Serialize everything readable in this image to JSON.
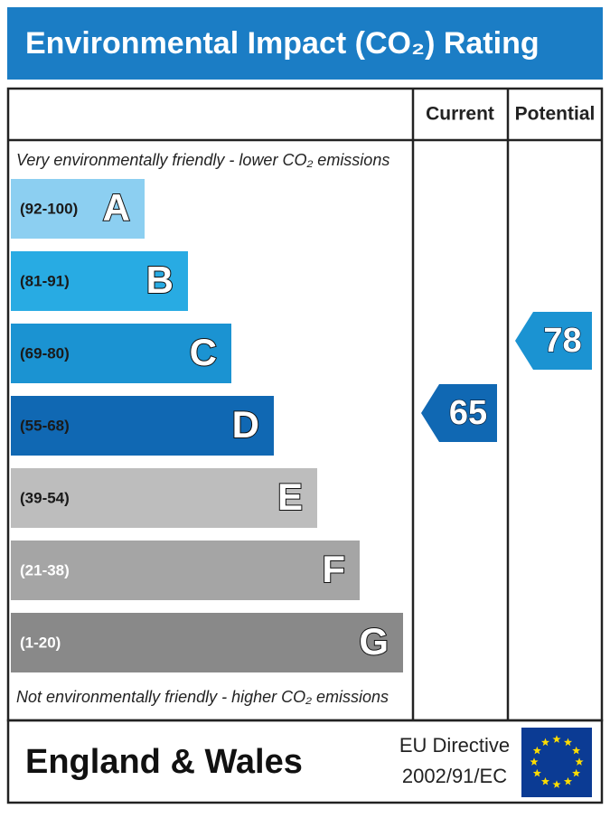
{
  "header": {
    "title": "Environmental Impact (CO₂) Rating"
  },
  "columns": [
    "Current",
    "Potential"
  ],
  "top_note": "Very environmentally friendly - lower CO₂ emissions",
  "bottom_note": "Not environmentally friendly - higher CO₂ emissions",
  "bands": [
    {
      "range": "(92-100)",
      "letter": "A",
      "color": "#8ccff1"
    },
    {
      "range": "(81-91)",
      "letter": "B",
      "color": "#28abe3"
    },
    {
      "range": "(69-80)",
      "letter": "C",
      "color": "#1b93d2"
    },
    {
      "range": "(55-68)",
      "letter": "D",
      "color": "#1068b3"
    },
    {
      "range": "(39-54)",
      "letter": "E",
      "color": "#bdbdbd"
    },
    {
      "range": "(21-38)",
      "letter": "F",
      "color": "#a5a5a5"
    },
    {
      "range": "(1-20)",
      "letter": "G",
      "color": "#898989"
    }
  ],
  "ratings": {
    "current": 65,
    "potential": 78
  },
  "footer": {
    "region": "England & Wales",
    "directive_line1": "EU Directive",
    "directive_line2": "2002/91/EC"
  }
}
